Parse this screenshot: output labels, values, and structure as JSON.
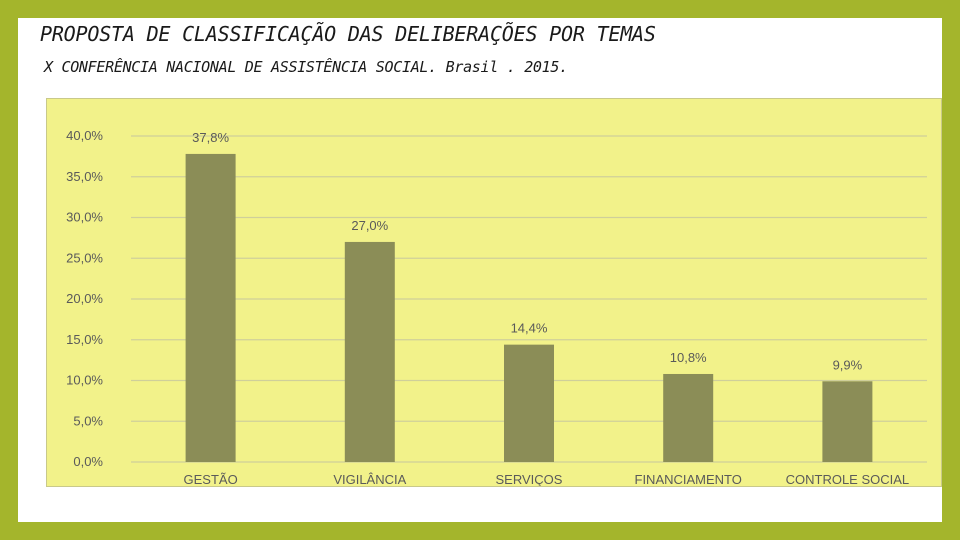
{
  "title": "PROPOSTA DE CLASSIFICAÇÃO DAS DELIBERAÇÕES POR TEMAS",
  "subtitle": "X CONFERÊNCIA NACIONAL DE ASSISTÊNCIA SOCIAL. Brasil . 2015.",
  "colors": {
    "background": "#a4b52c",
    "plot_background": "#f2f28a",
    "bar": "#8b8d57",
    "gridline": "#cfcf9a",
    "text": "#5a5a5a"
  },
  "chart_data": {
    "type": "bar",
    "categories": [
      "GESTÃO",
      "VIGILÂNCIA",
      "SERVIÇOS",
      "FINANCIAMENTO",
      "CONTROLE SOCIAL"
    ],
    "values": [
      37.8,
      27.0,
      14.4,
      10.8,
      9.9
    ],
    "data_labels": [
      "37,8%",
      "27,0%",
      "14,4%",
      "10,8%",
      "9,9%"
    ],
    "ytick_values": [
      0,
      5,
      10,
      15,
      20,
      25,
      30,
      35,
      40
    ],
    "ytick_labels": [
      "0,0%",
      "5,0%",
      "10,0%",
      "15,0%",
      "20,0%",
      "25,0%",
      "30,0%",
      "35,0%",
      "40,0%"
    ],
    "ylim": [
      0,
      40
    ],
    "grid": true,
    "legend": "none",
    "xlabel": "",
    "ylabel": ""
  }
}
